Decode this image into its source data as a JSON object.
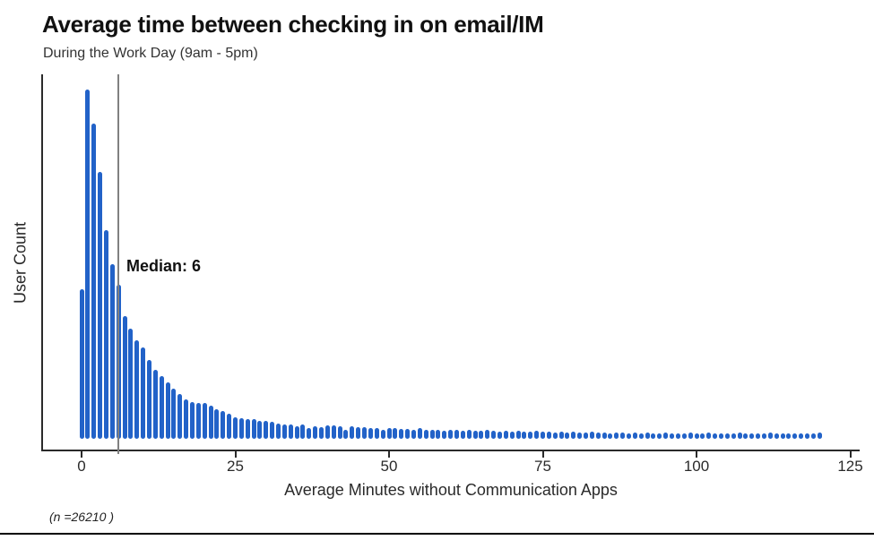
{
  "page": {
    "title": "Average time between checking in on email/IM",
    "subtitle": "During the Work Day (9am - 5pm)",
    "footnote": "(n =26210 )"
  },
  "colors": {
    "bar": "#2262c8",
    "median_line": "#808080",
    "axis": "#2a2a2a",
    "text": "#1a1a1a"
  },
  "chart_data": {
    "type": "bar",
    "title": "Average time between checking in on email/IM",
    "subtitle": "During the Work Day (9am - 5pm)",
    "xlabel": "Average Minutes without Communication Apps",
    "ylabel": "User Count",
    "x_ticks": [
      0,
      25,
      50,
      75,
      100,
      125
    ],
    "x_tick_labels": [
      "0",
      "25",
      "50",
      "75",
      "100",
      "125"
    ],
    "xlim": [
      -6.5,
      126.5
    ],
    "grid": false,
    "legend": false,
    "y_tick_labels_shown": false,
    "median_annotation": {
      "label": "Median: 6",
      "x": 6
    },
    "sample_size_note": "(n =26210 )",
    "x_unit": "minutes",
    "x_min": 0,
    "x_step": 1,
    "values_note": "Y axis shows no tick labels; values are relative bar heights (pixels), index = minutes 0-120, max bar at minute 1.",
    "values": [
      167,
      390,
      352,
      298,
      233,
      195,
      172,
      137,
      123,
      110,
      102,
      88,
      77,
      70,
      63,
      56,
      50,
      44,
      41,
      40,
      40,
      37,
      33,
      31,
      28,
      24,
      23,
      22,
      22,
      20,
      20,
      19,
      17,
      16,
      16,
      14,
      16,
      12,
      14,
      13,
      15,
      15,
      14,
      10,
      14,
      13,
      13,
      12,
      12,
      10,
      12,
      12,
      11,
      11,
      10,
      12,
      10,
      10,
      10,
      9,
      10,
      10,
      9,
      10,
      9,
      9,
      10,
      9,
      8,
      9,
      8,
      9,
      8,
      8,
      9,
      8,
      8,
      7,
      8,
      7,
      8,
      7,
      7,
      8,
      7,
      7,
      6,
      7,
      7,
      6,
      7,
      6,
      7,
      6,
      6,
      7,
      6,
      6,
      6,
      7,
      6,
      6,
      7,
      6,
      6,
      6,
      6,
      7,
      6,
      6,
      6,
      6,
      7,
      6,
      6,
      6,
      6,
      6,
      6,
      6,
      7
    ]
  }
}
